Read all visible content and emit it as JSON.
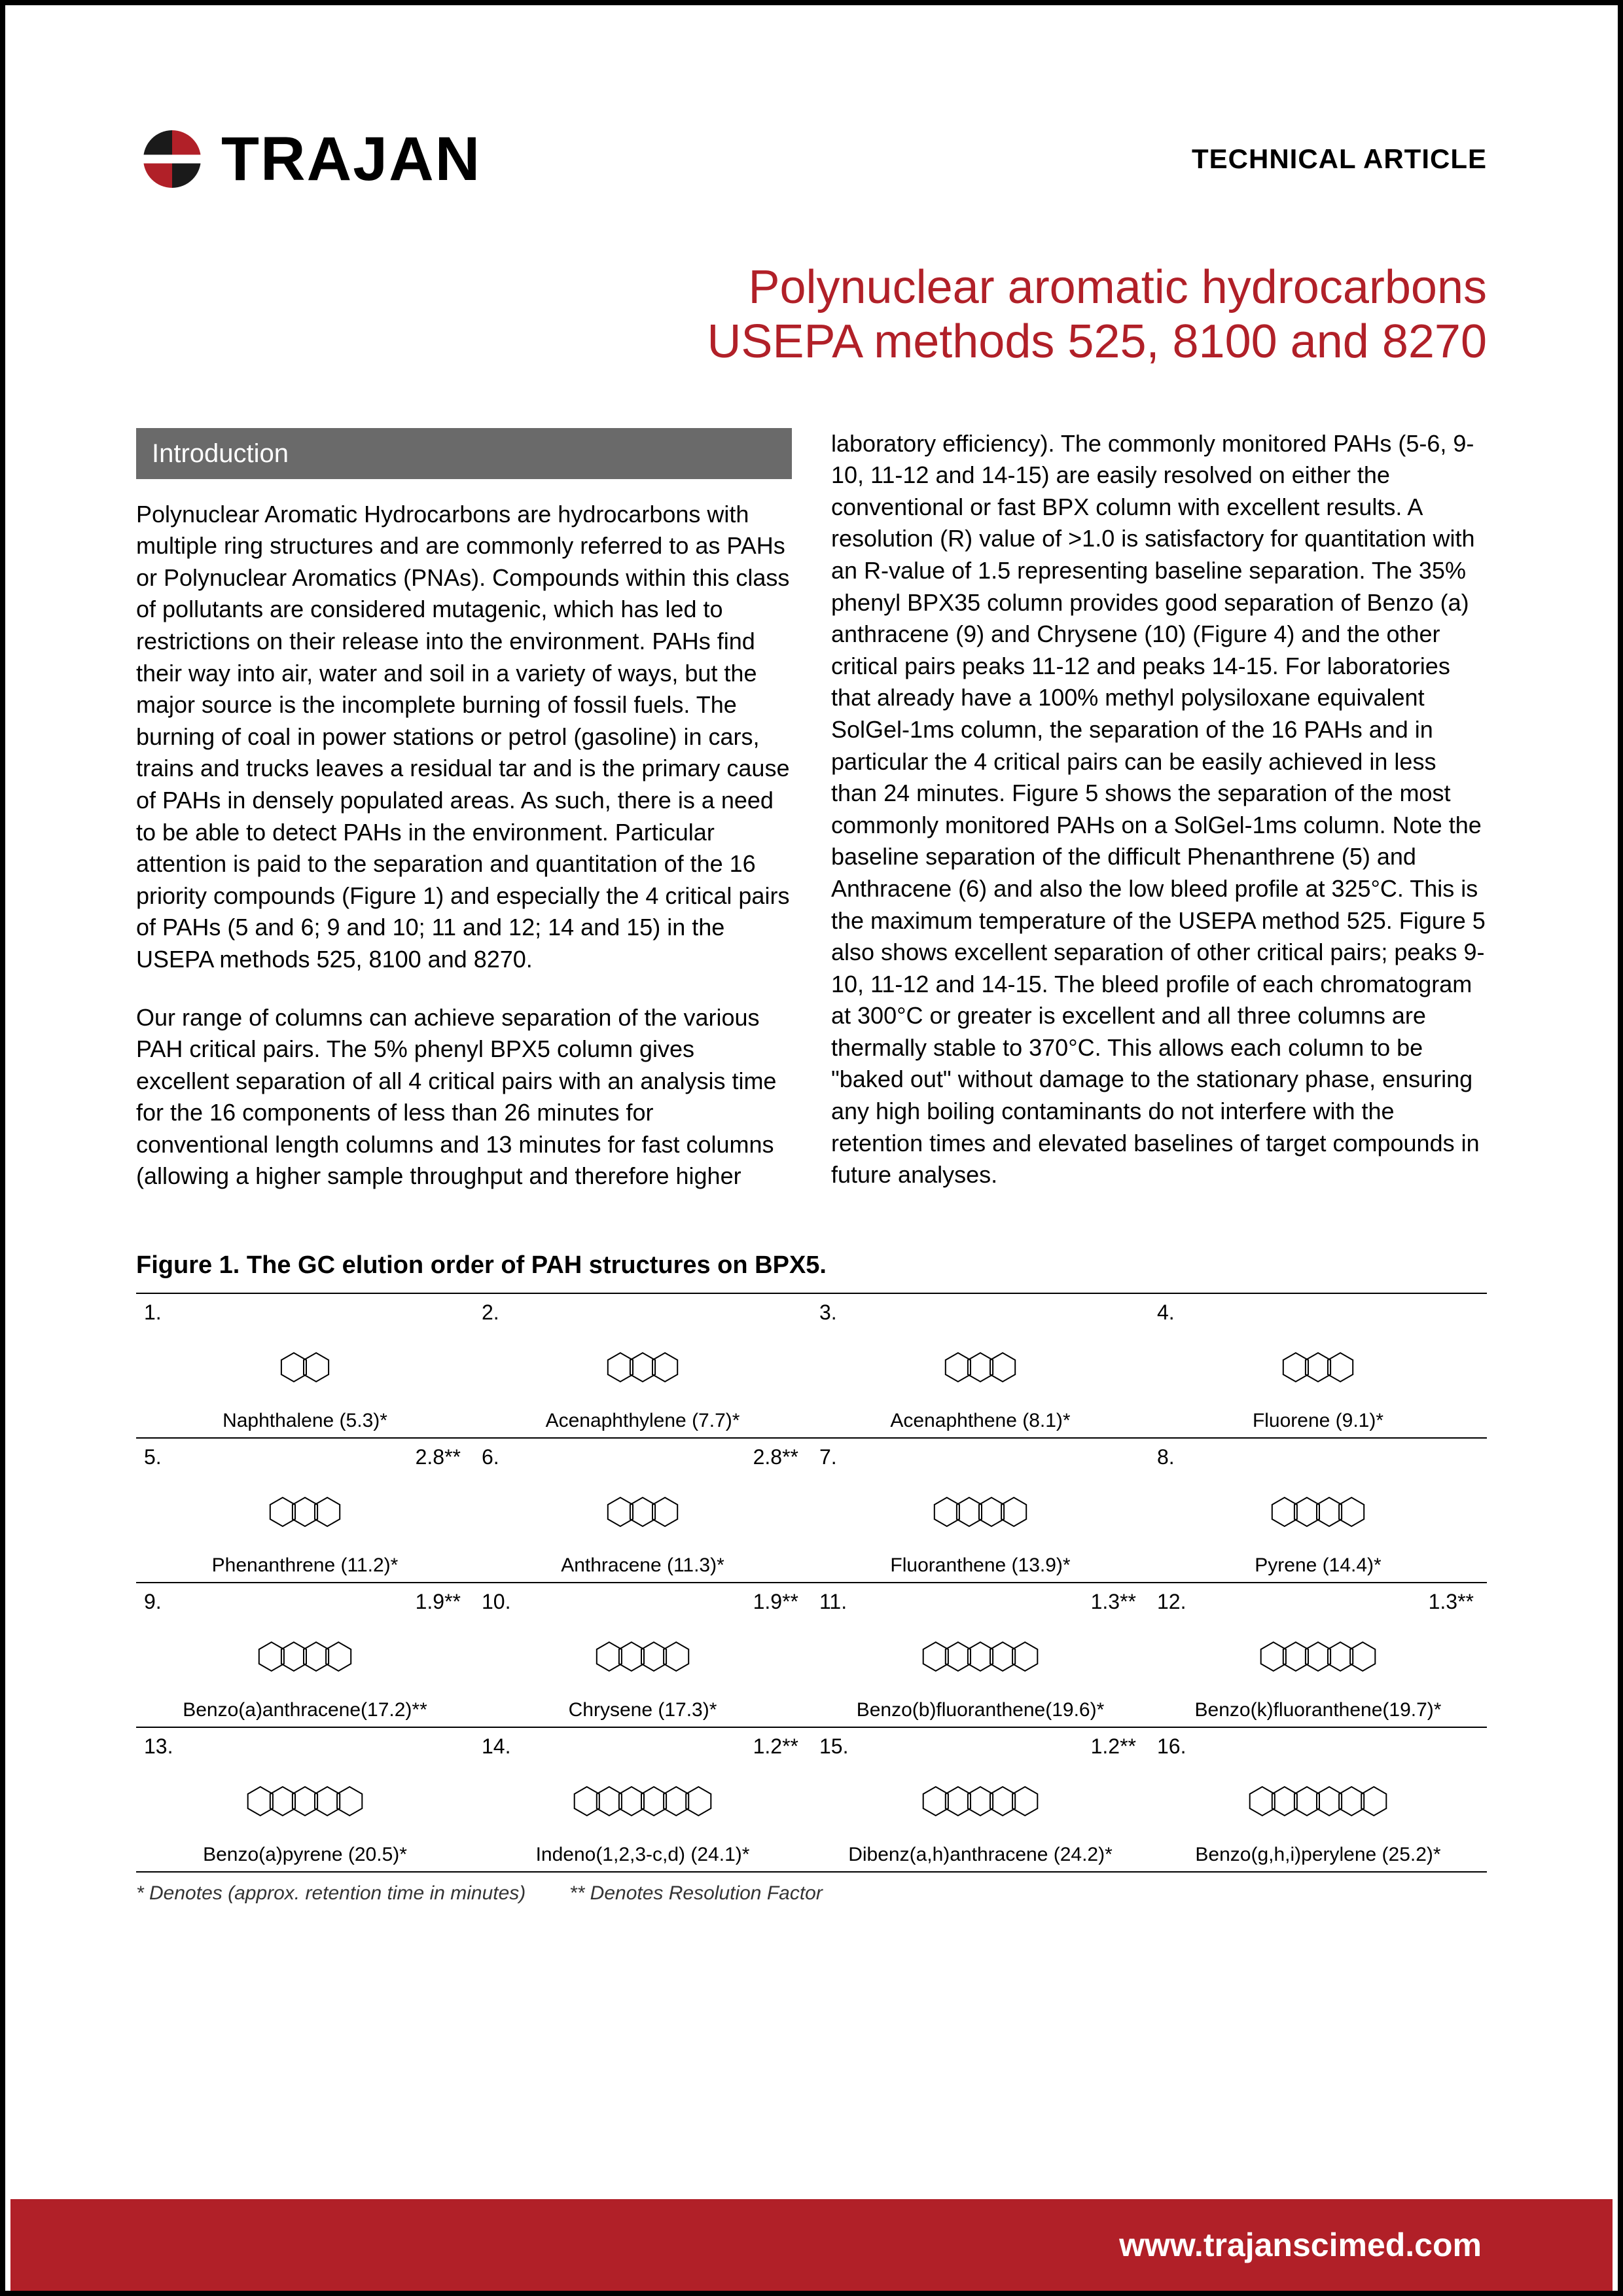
{
  "brand": "TRAJAN",
  "doc_type": "TECHNICAL ARTICLE",
  "title_line1": "Polynuclear aromatic hydrocarbons",
  "title_line2": "USEPA methods 525, 8100 and 8270",
  "section_header": "Introduction",
  "para1": "Polynuclear Aromatic Hydrocarbons are hydrocarbons with multiple ring structures and are commonly referred to as PAHs or Polynuclear Aromatics (PNAs). Compounds within this class of pollutants are considered mutagenic, which has led to restrictions on their release into the environment. PAHs find their way into air, water and soil in a variety of ways, but the major source is the incomplete burning of fossil fuels. The burning of coal in power stations or petrol (gasoline) in cars, trains and trucks leaves a residual tar and is the primary cause of PAHs in densely populated areas. As such, there is a need to be able to detect PAHs in the environment. Particular attention is paid to the separation and quantitation of the 16 priority compounds (Figure 1) and especially the 4 critical pairs of PAHs (5 and 6; 9 and 10; 11 and 12; 14 and 15) in the USEPA methods 525, 8100 and 8270.",
  "para2": "Our range of columns can achieve separation of the various PAH critical pairs. The 5% phenyl BPX5 column gives excellent separation of all 4 critical pairs with an analysis time for the 16 components of less than 26 minutes for conventional length columns and 13 minutes for fast columns (allowing a higher sample throughput and therefore higher",
  "para3": "laboratory efficiency). The commonly monitored PAHs (5-6, 9-10, 11-12 and 14-15) are easily resolved on either the conventional or fast BPX column with excellent results. A resolution (R) value of >1.0 is satisfactory for quantitation with an R-value of 1.5 representing baseline separation. The 35% phenyl BPX35 column provides good separation of Benzo (a) anthracene (9) and Chrysene (10) (Figure 4) and the other critical pairs peaks 11-12 and peaks 14-15. For laboratories that already have a 100% methyl polysiloxane equivalent SolGel-1ms column, the separation of the 16 PAHs and in particular the 4 critical pairs can be easily achieved in less than 24 minutes. Figure 5 shows the separation of the most commonly monitored PAHs on a SolGel-1ms column. Note the baseline separation of the difficult Phenanthrene (5) and Anthracene (6) and also the low bleed profile at 325°C. This is the maximum temperature of the USEPA method 525. Figure 5 also shows excellent separation of other critical pairs; peaks 9-10, 11-12 and 14-15. The bleed profile of each chromatogram at 300°C or greater is excellent and all three columns are thermally stable to 370°C. This allows each column to be \"baked out\" without damage to the stationary phase, ensuring any high boiling contaminants do not interfere with the retention times and elevated baselines of target compounds in future analyses.",
  "figure_title": "Figure 1. The GC elution order of PAH structures on BPX5.",
  "compounds": [
    {
      "num": "1.",
      "name": "Naphthalene (5.3)*",
      "rf": "",
      "rings": 2
    },
    {
      "num": "2.",
      "name": "Acenaphthylene (7.7)*",
      "rf": "",
      "rings": 3
    },
    {
      "num": "3.",
      "name": "Acenaphthene (8.1)*",
      "rf": "",
      "rings": 3
    },
    {
      "num": "4.",
      "name": "Fluorene (9.1)*",
      "rf": "",
      "rings": 3
    },
    {
      "num": "5.",
      "name": "Phenanthrene (11.2)*",
      "rf": "2.8**",
      "rings": 3
    },
    {
      "num": "6.",
      "name": "Anthracene (11.3)*",
      "rf": "2.8**",
      "rings": 3
    },
    {
      "num": "7.",
      "name": "Fluoranthene (13.9)*",
      "rf": "",
      "rings": 4
    },
    {
      "num": "8.",
      "name": "Pyrene (14.4)*",
      "rf": "",
      "rings": 4
    },
    {
      "num": "9.",
      "name": "Benzo(a)anthracene(17.2)**",
      "rf": "1.9**",
      "rings": 4
    },
    {
      "num": "10.",
      "name": "Chrysene (17.3)*",
      "rf": "1.9**",
      "rings": 4
    },
    {
      "num": "11.",
      "name": "Benzo(b)fluoranthene(19.6)*",
      "rf": "1.3**",
      "rings": 5
    },
    {
      "num": "12.",
      "name": "Benzo(k)fluoranthene(19.7)*",
      "rf": "1.3**",
      "rings": 5
    },
    {
      "num": "13.",
      "name": "Benzo(a)pyrene (20.5)*",
      "rf": "",
      "rings": 5
    },
    {
      "num": "14.",
      "name": "Indeno(1,2,3-c,d) (24.1)*",
      "rf": "1.2**",
      "rings": 6
    },
    {
      "num": "15.",
      "name": "Dibenz(a,h)anthracene (24.2)*",
      "rf": "1.2**",
      "rings": 5
    },
    {
      "num": "16.",
      "name": "Benzo(g,h,i)perylene (25.2)*",
      "rf": "",
      "rings": 6
    }
  ],
  "footnote1": "* Denotes (approx. retention time in minutes)",
  "footnote2": "** Denotes Resolution Factor",
  "footer_url": "www.trajanscimed.com",
  "colors": {
    "brand_red": "#b12028",
    "header_gray": "#6a6a6a",
    "text": "#000000"
  }
}
